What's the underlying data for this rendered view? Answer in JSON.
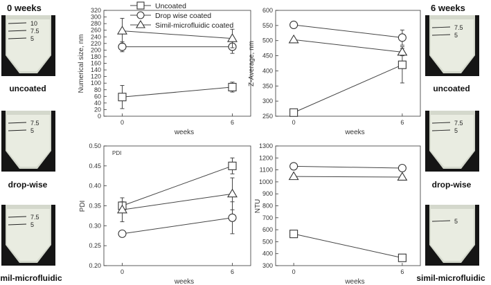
{
  "left_panel": {
    "title": "0 weeks",
    "photos": [
      {
        "label": "uncoated",
        "marks": [
          "10",
          "7.5",
          "5"
        ]
      },
      {
        "label": "drop-wise",
        "marks": [
          "7.5",
          "5"
        ]
      },
      {
        "label": "simil-microfluidic",
        "marks": [
          "7.5",
          "5"
        ]
      }
    ]
  },
  "right_panel": {
    "title": "6 weeks",
    "photos": [
      {
        "label": "uncoated",
        "marks": [
          "7.5",
          "5"
        ]
      },
      {
        "label": "drop-wise",
        "marks": [
          "7.5",
          "5"
        ]
      },
      {
        "label": "simil-microfluidic",
        "marks": [
          "5"
        ]
      }
    ]
  },
  "legend": [
    "Uncoated",
    "Drop wise coated",
    "Simil-microfluidic coated"
  ],
  "colors": {
    "marker_stroke": "#333333",
    "marker_fill": "#ffffff",
    "photo_liquid": "#e9ece1",
    "photo_tube": "#d4d8cc",
    "photo_bg": "#151515"
  },
  "chart_data": [
    {
      "type": "line",
      "ylabel": "Numerical size, nm",
      "xlabel": "weeks",
      "x": [
        0,
        6
      ],
      "xticks": [
        "0",
        "6"
      ],
      "ylim": [
        0,
        320
      ],
      "yticks": [
        "0",
        "20",
        "40",
        "60",
        "80",
        "100",
        "120",
        "140",
        "160",
        "180",
        "200",
        "220",
        "240",
        "260",
        "280",
        "300",
        "320"
      ],
      "series": [
        {
          "name": "Uncoated",
          "marker": "square",
          "values": [
            58,
            88
          ],
          "errors": [
            35,
            15
          ]
        },
        {
          "name": "Drop wise coated",
          "marker": "circle",
          "values": [
            210,
            210
          ],
          "errors": [
            15,
            20
          ]
        },
        {
          "name": "Simil-microfluidic coated",
          "marker": "triangle",
          "values": [
            258,
            235
          ],
          "errors": [
            38,
            28
          ]
        }
      ]
    },
    {
      "type": "line",
      "ylabel": "Z-Average, nm",
      "xlabel": "weeks",
      "x": [
        0,
        6
      ],
      "xticks": [
        "0",
        "6"
      ],
      "ylim": [
        250,
        600
      ],
      "yticks": [
        "250",
        "300",
        "350",
        "400",
        "450",
        "500",
        "550",
        "600"
      ],
      "series": [
        {
          "name": "Uncoated",
          "marker": "square",
          "values": [
            262,
            420
          ],
          "errors": [
            8,
            60
          ]
        },
        {
          "name": "Drop wise coated",
          "marker": "circle",
          "values": [
            552,
            510
          ],
          "errors": [
            8,
            25
          ]
        },
        {
          "name": "Simil-microfluidic coated",
          "marker": "triangle",
          "values": [
            503,
            462
          ],
          "errors": [
            5,
            12
          ]
        }
      ]
    },
    {
      "type": "line",
      "ylabel": "PDI",
      "title": "PDI",
      "xlabel": "weeks",
      "x": [
        0,
        6
      ],
      "xticks": [
        "0",
        "6"
      ],
      "ylim": [
        0.2,
        0.5
      ],
      "yticks": [
        "0.20",
        "0.25",
        "0.30",
        "0.35",
        "0.40",
        "0.45",
        "0.50"
      ],
      "series": [
        {
          "name": "Uncoated",
          "marker": "square",
          "values": [
            0.35,
            0.45
          ],
          "errors": [
            0.01,
            0.02
          ]
        },
        {
          "name": "Drop wise coated",
          "marker": "circle",
          "values": [
            0.28,
            0.32
          ],
          "errors": [
            0.008,
            0.04
          ]
        },
        {
          "name": "Simil-microfluidic coated",
          "marker": "triangle",
          "values": [
            0.34,
            0.38
          ],
          "errors": [
            0.03,
            0.04
          ]
        }
      ]
    },
    {
      "type": "line",
      "ylabel": "NTU",
      "xlabel": "weeks",
      "x": [
        0,
        6
      ],
      "xticks": [
        "0",
        "6"
      ],
      "ylim": [
        300,
        1300
      ],
      "yticks": [
        "300",
        "400",
        "500",
        "600",
        "700",
        "800",
        "900",
        "1000",
        "1100",
        "1200",
        "1300"
      ],
      "series": [
        {
          "name": "Uncoated",
          "marker": "square",
          "values": [
            565,
            365
          ],
          "errors": [
            20,
            15
          ]
        },
        {
          "name": "Drop wise coated",
          "marker": "circle",
          "values": [
            1130,
            1115
          ],
          "errors": [
            15,
            15
          ]
        },
        {
          "name": "Simil-microfluidic coated",
          "marker": "triangle",
          "values": [
            1045,
            1040
          ],
          "errors": [
            10,
            10
          ]
        }
      ]
    }
  ]
}
